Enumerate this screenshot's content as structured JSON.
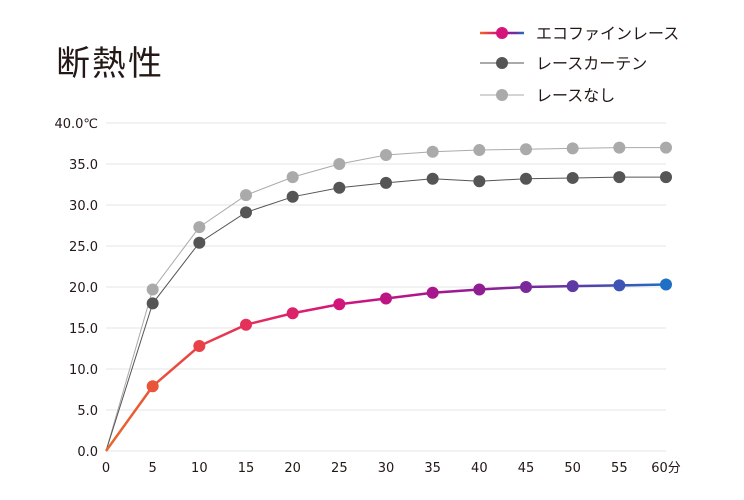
{
  "title": "断熱性",
  "chart_data": {
    "type": "line",
    "title": "断熱性",
    "x": [
      0,
      5,
      10,
      15,
      20,
      25,
      30,
      35,
      40,
      45,
      50,
      55,
      60
    ],
    "x_tick_labels": [
      "0",
      "5",
      "10",
      "15",
      "20",
      "25",
      "30",
      "35",
      "40",
      "45",
      "50",
      "55",
      "60分"
    ],
    "y_tick_labels": [
      "0.0",
      "5.0",
      "10.0",
      "15.0",
      "20.0",
      "25.0",
      "30.0",
      "35.0",
      "40.0℃"
    ],
    "y_ticks": [
      0,
      5,
      10,
      15,
      20,
      25,
      30,
      35,
      40
    ],
    "xlim": [
      0,
      60
    ],
    "ylim": [
      0,
      40
    ],
    "grid": "horizontal",
    "legend_position": "top-right",
    "series": [
      {
        "name": "エコファインレース",
        "values": [
          0,
          7.9,
          12.8,
          15.4,
          16.8,
          17.9,
          18.6,
          19.3,
          19.7,
          20.0,
          20.1,
          20.2,
          20.3
        ],
        "gradient": [
          "#e8692a",
          "#e83a4e",
          "#d6157a",
          "#a3168e",
          "#6b2f9e",
          "#1f6fc4"
        ]
      },
      {
        "name": "レースカーテン",
        "values": [
          0,
          18.0,
          25.4,
          29.1,
          31.0,
          32.1,
          32.7,
          33.2,
          32.9,
          33.2,
          33.3,
          33.4,
          33.4
        ],
        "color": "#555555"
      },
      {
        "name": "レースなし",
        "values": [
          0,
          19.7,
          27.3,
          31.2,
          33.4,
          35.0,
          36.1,
          36.5,
          36.7,
          36.8,
          36.9,
          37.0,
          37.0
        ],
        "color": "#aaaaaa"
      }
    ]
  }
}
